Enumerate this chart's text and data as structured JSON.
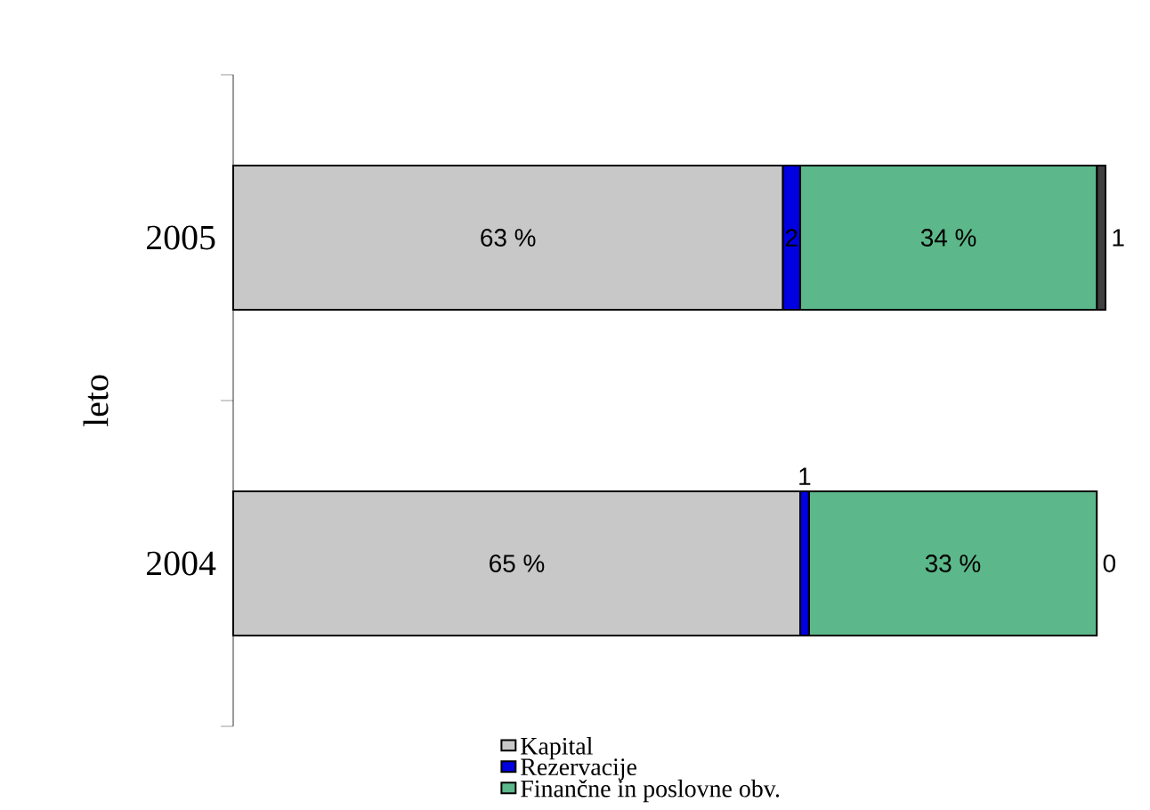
{
  "chart_data": {
    "type": "bar",
    "orientation": "horizontal",
    "stacked": true,
    "ylabel": "leto",
    "legend": "bottom",
    "categories": [
      "2005",
      "2004"
    ],
    "series": [
      {
        "name": "Kapital",
        "color": "#c8c8c8",
        "values": [
          63,
          65
        ],
        "value_labels": [
          "63 %",
          "65 %"
        ]
      },
      {
        "name": "Rezervacije",
        "color": "#0000e0",
        "values": [
          2,
          1
        ],
        "value_labels": [
          "2",
          "1"
        ]
      },
      {
        "name": "Finančne in poslovne obv.",
        "color": "#5cb88a",
        "values": [
          34,
          33
        ],
        "value_labels": [
          "34 %",
          "33 %"
        ]
      },
      {
        "color": "#404040",
        "values": [
          1,
          0
        ],
        "value_labels": [
          "1",
          "0"
        ]
      }
    ]
  }
}
